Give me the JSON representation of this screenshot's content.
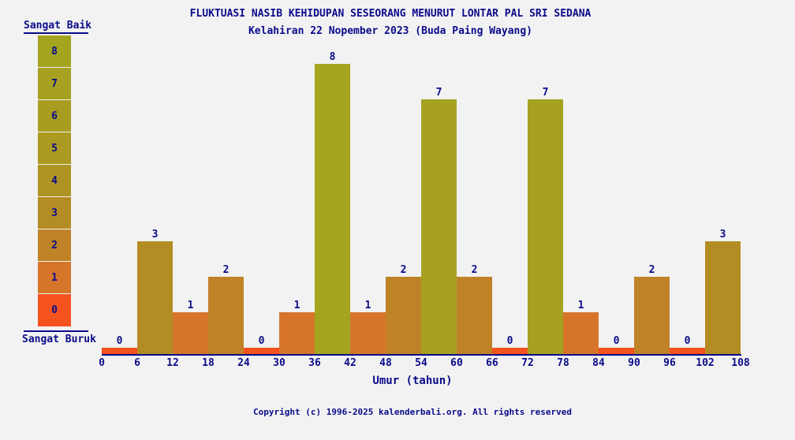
{
  "title": "FLUKTUASI NASIB KEHIDUPAN SESEORANG MENURUT LONTAR PAL SRI SEDANA",
  "subtitle": "Kelahiran 22 Nopember 2023 (Buda Paing Wayang)",
  "legend": {
    "top_label": "Sangat Baik",
    "bottom_label": "Sangat Buruk",
    "levels": [
      8,
      7,
      6,
      5,
      4,
      3,
      2,
      1,
      0
    ],
    "colors": {
      "8": "#a4a41f",
      "7": "#a6a120",
      "6": "#a99d21",
      "5": "#ab9921",
      "4": "#ae9422",
      "3": "#b38c23",
      "2": "#bf8226",
      "1": "#d6752a",
      "0": "#f4521e"
    }
  },
  "chart_data": {
    "type": "bar",
    "categories": [
      "0-6",
      "6-12",
      "12-18",
      "18-24",
      "24-30",
      "30-36",
      "36-42",
      "42-48",
      "48-54",
      "54-60",
      "60-66",
      "66-72",
      "72-78",
      "78-84",
      "84-90",
      "90-96",
      "96-102",
      "102-108"
    ],
    "values": [
      0,
      3,
      1,
      2,
      0,
      1,
      8,
      1,
      2,
      7,
      2,
      0,
      7,
      1,
      0,
      2,
      0,
      3
    ],
    "x_ticks": [
      0,
      6,
      12,
      18,
      24,
      30,
      36,
      42,
      48,
      54,
      60,
      66,
      72,
      78,
      84,
      90,
      96,
      102,
      108
    ],
    "title": "FLUKTUASI NASIB KEHIDUPAN SESEORANG MENURUT LONTAR PAL SRI SEDANA",
    "subtitle": "Kelahiran 22 Nopember 2023 (Buda Paing Wayang)",
    "xlabel": "Umur (tahun)",
    "ylabel": "",
    "ylim": [
      0,
      8
    ],
    "grid": false,
    "legend_position": "left",
    "bar_colors_keyed_by_value": true
  },
  "footer": {
    "copyright": "Copyright (c) 1996-2025 kalenderbali.org. All rights reserved"
  },
  "colors": {
    "background": "#f2f2f2",
    "text": "#0b0b8b",
    "axis": "#0b0b8b"
  }
}
